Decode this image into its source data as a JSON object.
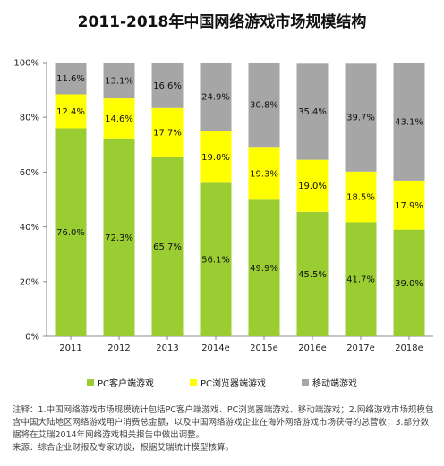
{
  "chart_data": {
    "type": "bar",
    "stacked": true,
    "title": "2011-2018年中国网络游戏市场规模结构",
    "categories": [
      "2011",
      "2012",
      "2013",
      "2014e",
      "2015e",
      "2016e",
      "2017e",
      "2018e"
    ],
    "ylim": [
      0,
      100
    ],
    "y_ticks": [
      "0%",
      "20%",
      "40%",
      "60%",
      "80%",
      "100%"
    ],
    "grid": false,
    "legend_position": "bottom",
    "series": [
      {
        "name": "PC客户端游戏",
        "color": "#9ACD32",
        "values": [
          76.0,
          72.3,
          65.7,
          56.1,
          49.9,
          45.5,
          41.7,
          39.0
        ],
        "labels": [
          "76.0%",
          "72.3%",
          "65.7%",
          "56.1%",
          "49.9%",
          "45.5%",
          "41.7%",
          "39.0%"
        ]
      },
      {
        "name": "PC浏览器端游戏",
        "color": "#FFFF00",
        "values": [
          12.4,
          14.6,
          17.7,
          19.0,
          19.3,
          19.0,
          18.5,
          17.9
        ],
        "labels": [
          "12.4%",
          "14.6%",
          "17.7%",
          "19.0%",
          "19.3%",
          "19.0%",
          "18.5%",
          "17.9%"
        ]
      },
      {
        "name": "移动端游戏",
        "color": "#A6A6A6",
        "values": [
          11.6,
          13.1,
          16.6,
          24.9,
          30.8,
          35.4,
          39.7,
          43.1
        ],
        "labels": [
          "11.6%",
          "13.1%",
          "16.6%",
          "24.9%",
          "30.8%",
          "35.4%",
          "39.7%",
          "43.1%"
        ]
      }
    ]
  },
  "notes": {
    "note": "注释：1.中国网络游戏市场规模统计包括PC客户端游戏、PC浏览器端游戏、移动端游戏；2.网络游戏市场规模包含中国大陆地区网络游戏用户消费总金额，以及中国网络游戏企业在海外网络游戏市场获得的总营收；3.部分数据将在艾瑞2014年网络游戏相关报告中做出调整。",
    "source": "来源：综合企业财报及专家访谈，根据艾瑞统计模型核算。"
  }
}
